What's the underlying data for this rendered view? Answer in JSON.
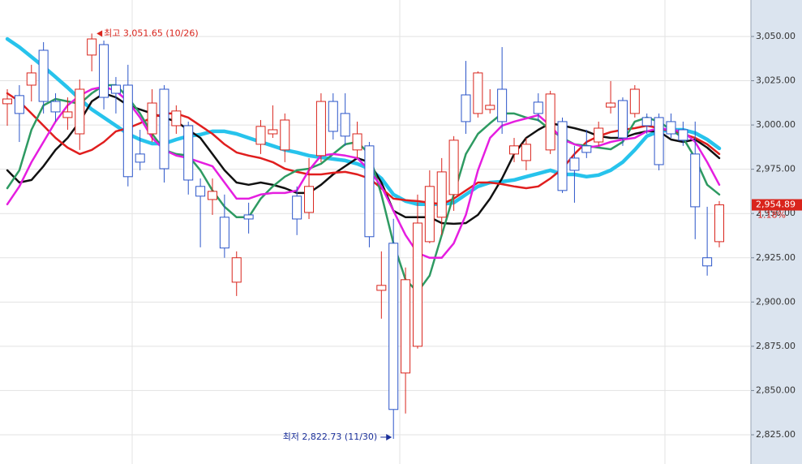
{
  "chart_data": {
    "type": "candlestick",
    "up_color": "#d9241c",
    "down_color": "#2b55c9",
    "ylim": [
      2808.5,
      3070.6
    ],
    "yticks": [
      {
        "value": 2825,
        "label": "2,825.00"
      },
      {
        "value": 2850,
        "label": "2,850.00"
      },
      {
        "value": 2875,
        "label": "2,875.00"
      },
      {
        "value": 2900,
        "label": "2,900.00"
      },
      {
        "value": 2925,
        "label": "2,925.00"
      },
      {
        "value": 2950,
        "label": "2,950.00"
      },
      {
        "value": 2975,
        "label": "2,975.00"
      },
      {
        "value": 3000,
        "label": "3,000.00"
      },
      {
        "value": 3025,
        "label": "3,025.00"
      },
      {
        "value": 3050,
        "label": "3,050.00"
      }
    ],
    "grid": true,
    "open": [
      3012.0,
      3016.6,
      3022.5,
      3042.2,
      3013.3,
      3004.2,
      2995.0,
      3039.5,
      3045.4,
      3022.5,
      3022.5,
      2983.6,
      2995.0,
      3020.2,
      2999.6,
      2999.6,
      2965.3,
      2957.9,
      2947.9,
      2911.2,
      2949.2,
      2989.1,
      2995.0,
      2985.9,
      2959.8,
      2950.6,
      2982.7,
      3013.3,
      3006.5,
      2985.9,
      2988.2,
      2906.6,
      2933.2,
      2859.9,
      2875.0,
      2934.1,
      2947.9,
      2960.7,
      3017.0,
      3006.5,
      3008.8,
      3020.2,
      2983.6,
      2979.9,
      3012.9,
      2985.9,
      3001.9,
      2981.3,
      2988.2,
      2990.4,
      3010.1,
      3013.8,
      3006.5,
      3004.2,
      3004.2,
      3001.9,
      2997.3,
      2983.6,
      2925.0,
      2934.1
    ],
    "high": [
      3020.2,
      3022.5,
      3034.0,
      3046.8,
      3017.9,
      3015.6,
      3025.7,
      3051.65,
      3047.7,
      3027.1,
      3034.0,
      2997.3,
      3020.2,
      3022.5,
      3011.1,
      3001.9,
      2969.8,
      2969.8,
      2960.7,
      2928.6,
      2956.1,
      3002.8,
      3011.1,
      3006.5,
      2965.3,
      2981.3,
      3017.9,
      3017.9,
      3017.9,
      3001.9,
      2990.4,
      2928.6,
      2947.0,
      2919.5,
      2960.7,
      2974.4,
      2981.3,
      2993.7,
      3036.2,
      3030.3,
      3020.2,
      3044.0,
      2992.7,
      2992.7,
      3017.9,
      3019.3,
      3004.2,
      2988.2,
      2997.3,
      3001.9,
      3024.8,
      3015.6,
      3022.5,
      3006.5,
      3006.5,
      3006.5,
      3001.9,
      3001.9,
      2953.8,
      2957.0
    ],
    "low": [
      2999.6,
      2990.4,
      3013.3,
      3006.5,
      3001.9,
      2997.3,
      2985.9,
      3030.3,
      3008.8,
      3006.5,
      2965.3,
      2974.4,
      2990.4,
      2967.5,
      2995.0,
      2960.7,
      2930.9,
      2949.2,
      2925.0,
      2903.4,
      2938.7,
      2983.6,
      2992.7,
      2979.0,
      2937.8,
      2946.9,
      2979.0,
      2991.8,
      2988.2,
      2981.3,
      2930.9,
      2890.6,
      2822.73,
      2837.0,
      2873.7,
      2933.2,
      2937.8,
      2951.5,
      2995.0,
      3004.2,
      3006.5,
      2995.0,
      2979.0,
      2974.4,
      3001.9,
      2983.6,
      2961.6,
      2956.1,
      2981.3,
      2988.2,
      3006.5,
      2988.2,
      3004.2,
      2995.0,
      2974.4,
      2992.7,
      2988.2,
      2935.5,
      2914.9,
      2930.9
    ],
    "close": [
      3014.7,
      3006.5,
      3029.4,
      3013.3,
      3007.4,
      3007.4,
      3020.2,
      3048.6,
      3015.6,
      3017.9,
      2970.8,
      2979.0,
      3012.4,
      2975.3,
      3007.9,
      2968.9,
      2959.8,
      2962.5,
      2930.5,
      2925.0,
      2946.9,
      2999.2,
      2997.3,
      3002.8,
      2946.9,
      2965.3,
      3013.3,
      2996.4,
      2993.7,
      2995.0,
      2936.9,
      2909.4,
      2839.3,
      2912.6,
      2944.6,
      2965.3,
      2973.5,
      2991.4,
      3001.9,
      3029.4,
      3011.1,
      3001.9,
      2988.2,
      2989.1,
      3006.5,
      3017.5,
      2963.0,
      2974.4,
      2984.5,
      2998.2,
      3012.4,
      2992.7,
      3020.2,
      2999.6,
      2977.6,
      2995.0,
      2991.4,
      2953.8,
      2920.4,
      2954.89
    ],
    "series": [
      {
        "color": "#27c3ec",
        "line_width": 4.5,
        "values": [
          3048.6,
          3044.0,
          3038.5,
          3033.0,
          3027.1,
          3021.1,
          3014.7,
          3008.8,
          3004.2,
          2999.6,
          2995.0,
          2991.8,
          2989.5,
          2989.5,
          2991.8,
          2993.7,
          2994.6,
          2996.4,
          2996.4,
          2995.0,
          2992.7,
          2990.4,
          2988.2,
          2985.9,
          2984.5,
          2982.7,
          2981.7,
          2980.8,
          2979.9,
          2978.1,
          2975.3,
          2969.8,
          2960.7,
          2957.0,
          2955.2,
          2955.2,
          2955.2,
          2956.1,
          2960.7,
          2965.3,
          2967.5,
          2968.0,
          2968.9,
          2970.8,
          2972.6,
          2974.4,
          2972.1,
          2972.1,
          2970.8,
          2971.7,
          2974.4,
          2979.0,
          2985.9,
          2993.7,
          2996.4,
          2997.3,
          2997.3,
          2995.5,
          2991.8,
          2986.8
        ]
      },
      {
        "color": "#111111",
        "line_width": 2.5,
        "values": [
          2974.4,
          2967.5,
          2968.9,
          2976.7,
          2985.9,
          2992.7,
          3001.9,
          3013.3,
          3017.9,
          3015.6,
          3011.1,
          3008.8,
          3006.5,
          3004.2,
          3001.9,
          2997.3,
          2992.7,
          2983.6,
          2974.4,
          2967.5,
          2966.2,
          2967.5,
          2966.2,
          2964.3,
          2961.6,
          2961.6,
          2966.2,
          2972.1,
          2976.7,
          2981.3,
          2979.0,
          2967.5,
          2951.5,
          2947.9,
          2947.9,
          2947.9,
          2944.6,
          2944.2,
          2944.6,
          2949.2,
          2958.4,
          2969.8,
          2983.6,
          2992.7,
          2997.3,
          3001.0,
          2999.6,
          2998.2,
          2996.4,
          2993.7,
          2992.7,
          2992.7,
          2995.0,
          2996.4,
          2996.4,
          2991.8,
          2990.4,
          2991.8,
          2987.2,
          2981.3
        ]
      },
      {
        "color": "#e01e1e",
        "line_width": 2.5,
        "values": [
          3017.9,
          3013.3,
          3006.5,
          2999.6,
          2992.7,
          2987.2,
          2983.6,
          2985.9,
          2990.4,
          2996.4,
          2998.2,
          3001.0,
          3004.2,
          3006.5,
          3006.5,
          3004.2,
          2999.6,
          2995.0,
          2989.1,
          2984.5,
          2982.7,
          2981.3,
          2979.0,
          2975.3,
          2973.5,
          2972.1,
          2972.1,
          2973.0,
          2973.5,
          2972.1,
          2969.8,
          2964.3,
          2958.4,
          2957.5,
          2957.0,
          2956.1,
          2955.2,
          2958.4,
          2963.0,
          2967.5,
          2967.5,
          2966.6,
          2965.3,
          2964.3,
          2965.3,
          2969.8,
          2975.3,
          2983.6,
          2990.4,
          2993.7,
          2996.0,
          2997.3,
          2998.2,
          2999.6,
          2998.2,
          2996.4,
          2995.0,
          2992.7,
          2989.1,
          2983.6
        ]
      },
      {
        "color": "#2e9a62",
        "line_width": 2.5,
        "values": [
          2964.3,
          2974.4,
          2997.3,
          3011.1,
          3014.7,
          3013.3,
          3012.0,
          3017.9,
          3022.5,
          3022.5,
          3015.6,
          3006.5,
          2995.0,
          2985.9,
          2983.6,
          2982.7,
          2974.4,
          2963.0,
          2953.8,
          2947.9,
          2947.9,
          2958.4,
          2965.3,
          2970.8,
          2974.4,
          2975.3,
          2978.1,
          2983.6,
          2989.1,
          2990.4,
          2983.6,
          2960.7,
          2933.2,
          2912.6,
          2905.7,
          2914.9,
          2937.8,
          2960.7,
          2983.6,
          2995.0,
          3001.0,
          3006.5,
          3006.5,
          3004.2,
          3002.8,
          2997.3,
          2992.7,
          2989.1,
          2988.2,
          2987.2,
          2986.3,
          2990.4,
          3001.9,
          3004.2,
          3001.9,
          2997.3,
          2992.7,
          2981.3,
          2966.2,
          2960.7
        ]
      },
      {
        "color": "#e51ee0",
        "line_width": 2.5,
        "values": [
          2955.2,
          2965.3,
          2979.0,
          2990.4,
          3001.9,
          3011.1,
          3016.6,
          3020.2,
          3021.6,
          3019.3,
          3013.3,
          3004.2,
          2992.7,
          2985.9,
          2982.7,
          2981.3,
          2979.0,
          2976.7,
          2967.5,
          2958.4,
          2958.4,
          2960.7,
          2961.6,
          2961.6,
          2963.0,
          2974.4,
          2982.7,
          2983.6,
          2982.7,
          2981.3,
          2974.4,
          2965.3,
          2951.5,
          2937.8,
          2927.7,
          2925.0,
          2925.0,
          2933.2,
          2949.2,
          2974.4,
          2992.7,
          2999.6,
          3001.9,
          3003.7,
          3005.6,
          2999.6,
          2991.8,
          2989.1,
          2987.2,
          2988.2,
          2990.4,
          2991.8,
          2992.7,
          2996.4,
          2998.2,
          2997.3,
          2996.4,
          2990.4,
          2979.0,
          2966.2
        ]
      }
    ],
    "annotations": {
      "high": "최고 3,051.65 (10/26)",
      "low": "최저 2,822.73 (11/30)",
      "last": {
        "value": 2954.89,
        "label": "2,954.89"
      },
      "change": "1.18%"
    }
  }
}
